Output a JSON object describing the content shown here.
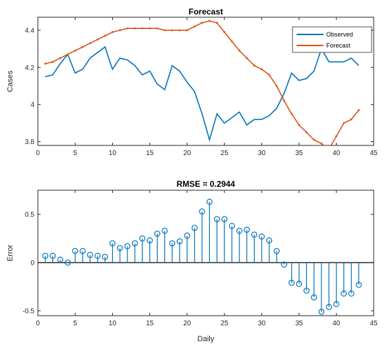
{
  "chart_data": [
    {
      "type": "line",
      "title": "Forecast",
      "xlabel": "",
      "ylabel": "Cases",
      "xlim": [
        0,
        45
      ],
      "ylim": [
        3.78,
        4.47
      ],
      "xticks": [
        0,
        5,
        10,
        15,
        20,
        25,
        30,
        35,
        40,
        45
      ],
      "yticks": [
        3.8,
        4,
        4.2,
        4.4
      ],
      "ytick_labels": [
        "3.8",
        "4",
        "4.2",
        "4.4"
      ],
      "legend_position": "top-right",
      "x": [
        1,
        2,
        3,
        4,
        5,
        6,
        7,
        8,
        9,
        10,
        11,
        12,
        13,
        14,
        15,
        16,
        17,
        18,
        19,
        20,
        21,
        22,
        23,
        24,
        25,
        26,
        27,
        28,
        29,
        30,
        31,
        32,
        33,
        34,
        35,
        36,
        37,
        38,
        39,
        40,
        41,
        42,
        43
      ],
      "series": [
        {
          "name": "Observed",
          "color": "#0072BD",
          "values": [
            4.15,
            4.16,
            4.22,
            4.27,
            4.17,
            4.19,
            4.25,
            4.28,
            4.31,
            4.19,
            4.25,
            4.24,
            4.21,
            4.16,
            4.18,
            4.11,
            4.08,
            4.21,
            4.18,
            4.12,
            4.07,
            3.95,
            3.81,
            3.95,
            3.9,
            3.93,
            3.96,
            3.89,
            3.92,
            3.92,
            3.94,
            3.98,
            4.06,
            4.17,
            4.13,
            4.14,
            4.18,
            4.3,
            4.23,
            4.23,
            4.23,
            4.25,
            4.21
          ]
        },
        {
          "name": "Forecast",
          "color": "#D95319",
          "values": [
            4.22,
            4.23,
            4.25,
            4.27,
            4.29,
            4.31,
            4.33,
            4.35,
            4.37,
            4.39,
            4.4,
            4.41,
            4.41,
            4.41,
            4.41,
            4.41,
            4.4,
            4.4,
            4.4,
            4.4,
            4.42,
            4.44,
            4.45,
            4.44,
            4.39,
            4.34,
            4.29,
            4.25,
            4.21,
            4.19,
            4.16,
            4.1,
            4.02,
            3.95,
            3.89,
            3.85,
            3.81,
            3.79,
            3.76,
            3.83,
            3.9,
            3.92,
            3.97
          ]
        }
      ]
    },
    {
      "type": "stem",
      "title": "RMSE = 0.2944",
      "xlabel": "Daily",
      "ylabel": "Error",
      "xlim": [
        0,
        45
      ],
      "ylim": [
        -0.55,
        0.75
      ],
      "xticks": [
        0,
        5,
        10,
        15,
        20,
        25,
        30,
        35,
        40,
        45
      ],
      "yticks": [
        -0.5,
        0,
        0.5
      ],
      "ytick_labels": [
        "-0.5",
        "0",
        "0.5"
      ],
      "color": "#0072BD",
      "x": [
        1,
        2,
        3,
        4,
        5,
        6,
        7,
        8,
        9,
        10,
        11,
        12,
        13,
        14,
        15,
        16,
        17,
        18,
        19,
        20,
        21,
        22,
        23,
        24,
        25,
        26,
        27,
        28,
        29,
        30,
        31,
        32,
        33,
        34,
        35,
        36,
        37,
        38,
        39,
        40,
        41,
        42,
        43
      ],
      "values": [
        0.07,
        0.07,
        0.03,
        0.0,
        0.12,
        0.12,
        0.08,
        0.07,
        0.06,
        0.2,
        0.15,
        0.17,
        0.2,
        0.25,
        0.23,
        0.3,
        0.33,
        0.2,
        0.22,
        0.28,
        0.36,
        0.53,
        0.63,
        0.45,
        0.45,
        0.38,
        0.33,
        0.34,
        0.29,
        0.27,
        0.23,
        0.12,
        -0.02,
        -0.21,
        -0.22,
        -0.29,
        -0.36,
        -0.51,
        -0.46,
        -0.43,
        -0.32,
        -0.32,
        -0.23
      ]
    }
  ]
}
